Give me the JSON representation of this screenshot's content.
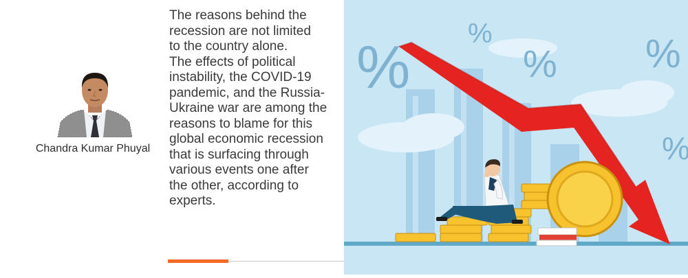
{
  "author": {
    "name": "Chandra Kumar Phuyal"
  },
  "quote": {
    "lines": [
      "The reasons behind the",
      "recession are not limited",
      "to the country alone.",
      "The effects of political",
      "instability, the COVID-19",
      "pandemic, and the Russia-",
      "Ukraine war are among the",
      "reasons to blame for this",
      "global economic recession",
      "that is surfacing through",
      "various events one after",
      "the other, according to",
      "experts."
    ]
  },
  "illustration": {
    "percent_symbol": "%",
    "colors": {
      "sky": "#bfe0f2",
      "arrow": "#e52421",
      "coin": "#f6c22d",
      "shirt": "#f4f6f8",
      "trousers": "#1f5a7a"
    }
  },
  "accent_color": "#f26a25"
}
